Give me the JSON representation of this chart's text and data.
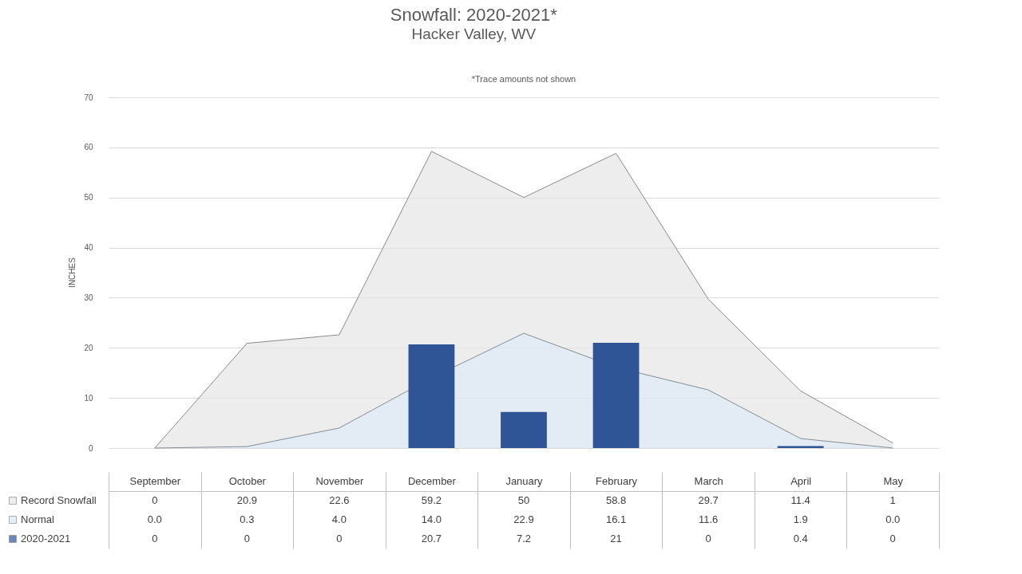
{
  "chart_data": {
    "type": "area",
    "title": "Snowfall: 2020-2021*",
    "subtitle": "Hacker Valley, WV",
    "ylabel": "INCHES",
    "annotations": [
      "*Trace amounts not shown"
    ],
    "categories": [
      "September",
      "October",
      "November",
      "December",
      "January",
      "February",
      "March",
      "April",
      "May"
    ],
    "series": [
      {
        "name": "Record Snowfall",
        "color": "#e6e6e6",
        "values": [
          0,
          20.9,
          22.6,
          59.2,
          50,
          58.8,
          29.7,
          11.4,
          1
        ],
        "value_labels": [
          "0",
          "20.9",
          "22.6",
          "59.2",
          "50",
          "58.8",
          "29.7",
          "11.4",
          "1"
        ]
      },
      {
        "name": "Normal",
        "color": "#deebf7",
        "values": [
          0.0,
          0.3,
          4.0,
          14.0,
          22.9,
          16.1,
          11.6,
          1.9,
          0.0
        ],
        "value_labels": [
          "0.0",
          "0.3",
          "4.0",
          "14.0",
          "22.9",
          "16.1",
          "11.6",
          "1.9",
          "0.0"
        ]
      },
      {
        "name": "2020-2021",
        "type": "bar",
        "color": "#2f5597",
        "values": [
          0,
          0,
          0,
          20.7,
          7.2,
          21,
          0,
          0.4,
          0
        ],
        "value_labels": [
          "0",
          "0",
          "0",
          "20.7",
          "7.2",
          "21",
          "0",
          "0.4",
          "0"
        ]
      }
    ],
    "ylim": [
      0,
      70
    ],
    "yticks": [
      0,
      10,
      20,
      30,
      40,
      50,
      60,
      70
    ],
    "grid": "y",
    "legend": "bottom"
  }
}
